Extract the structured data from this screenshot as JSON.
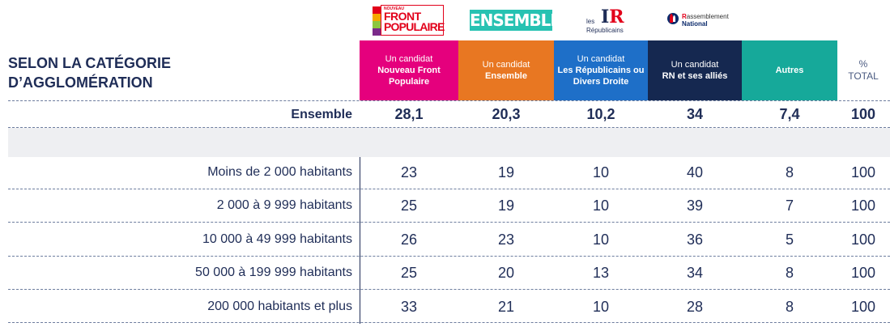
{
  "logos": {
    "nfp": {
      "small": "NOUVEAU",
      "line1": "FRONT",
      "line2": "POPULAIRE"
    },
    "ensemble": "ENSEMBLE",
    "lr": {
      "les": "les",
      "rep": "Républicains"
    },
    "rn": {
      "r": "R",
      "line1": "assemblement",
      "line2": "National"
    }
  },
  "colors": {
    "nfp": "#e5007d",
    "ensemble": "#e87722",
    "lr": "#1e6fc8",
    "rn": "#152850",
    "autres": "#16a99a",
    "text": "#1f2d57"
  },
  "chart_data": {
    "type": "table",
    "title_line1": "SELON LA CATÉGORIE",
    "title_line2": "D’AGGLOMÉRATION",
    "columns": [
      {
        "sub": "Un candidat",
        "name": "Nouveau Front Populaire"
      },
      {
        "sub": "Un candidat",
        "name": "Ensemble"
      },
      {
        "sub": "Un candidat",
        "name": "Les Républicains ou Divers Droite"
      },
      {
        "sub": "Un candidat",
        "name": "RN et ses alliés"
      },
      {
        "sub": "",
        "name": "Autres"
      }
    ],
    "total_header": {
      "line1": "%",
      "line2": "TOTAL"
    },
    "overall": {
      "label": "Ensemble",
      "values": [
        "28,1",
        "20,3",
        "10,2",
        "34",
        "7,4"
      ],
      "total": "100"
    },
    "rows": [
      {
        "label": "Moins de 2 000 habitants",
        "values": [
          23,
          19,
          10,
          40,
          8
        ],
        "total": 100
      },
      {
        "label": "2 000 à 9 999 habitants",
        "values": [
          25,
          19,
          10,
          39,
          7
        ],
        "total": 100
      },
      {
        "label": "10 000 à 49 999 habitants",
        "values": [
          26,
          23,
          10,
          36,
          5
        ],
        "total": 100
      },
      {
        "label": "50 000 à 199 999 habitants",
        "values": [
          25,
          20,
          13,
          34,
          8
        ],
        "total": 100
      },
      {
        "label": "200 000 habitants et plus",
        "values": [
          33,
          21,
          10,
          28,
          8
        ],
        "total": 100
      }
    ]
  }
}
